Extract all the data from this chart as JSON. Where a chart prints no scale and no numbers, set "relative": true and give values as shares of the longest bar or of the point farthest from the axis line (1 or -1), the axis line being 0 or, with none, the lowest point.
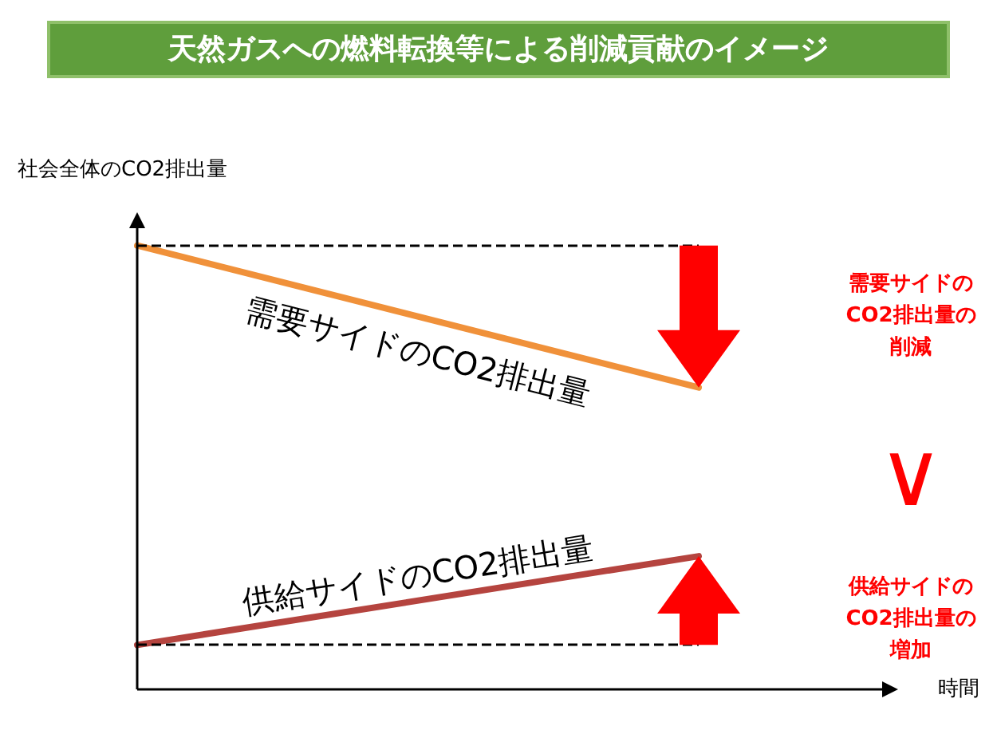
{
  "chart_data": {
    "type": "line",
    "title": "天然ガスへの燃料転換等による削減貢献のイメージ",
    "ylabel": "社会全体のCO2排出量",
    "xlabel": "時間",
    "relative": true,
    "categories": [
      null,
      null
    ],
    "series": [
      {
        "name": "需要サイドのCO2排出量",
        "color": "#f0913a",
        "values": [
          1,
          0.68
        ]
      },
      {
        "name": "供給サイドのCO2排出量",
        "color": "#b5443f",
        "values": [
          0.1,
          0.3
        ]
      }
    ],
    "ref_lines": [
      {
        "axis": "y",
        "value": 1,
        "label": null,
        "color": "#000000",
        "line_style": "dashed"
      },
      {
        "axis": "y",
        "value": 0.1,
        "label": null,
        "color": "#000000",
        "line_style": "dashed"
      }
    ],
    "annotations": [
      "需要サイドのCO2排出量の削減",
      "∨",
      "供給サイドのCO2排出量の増加"
    ],
    "grid": false,
    "marker": "none",
    "line_style": "solid"
  }
}
